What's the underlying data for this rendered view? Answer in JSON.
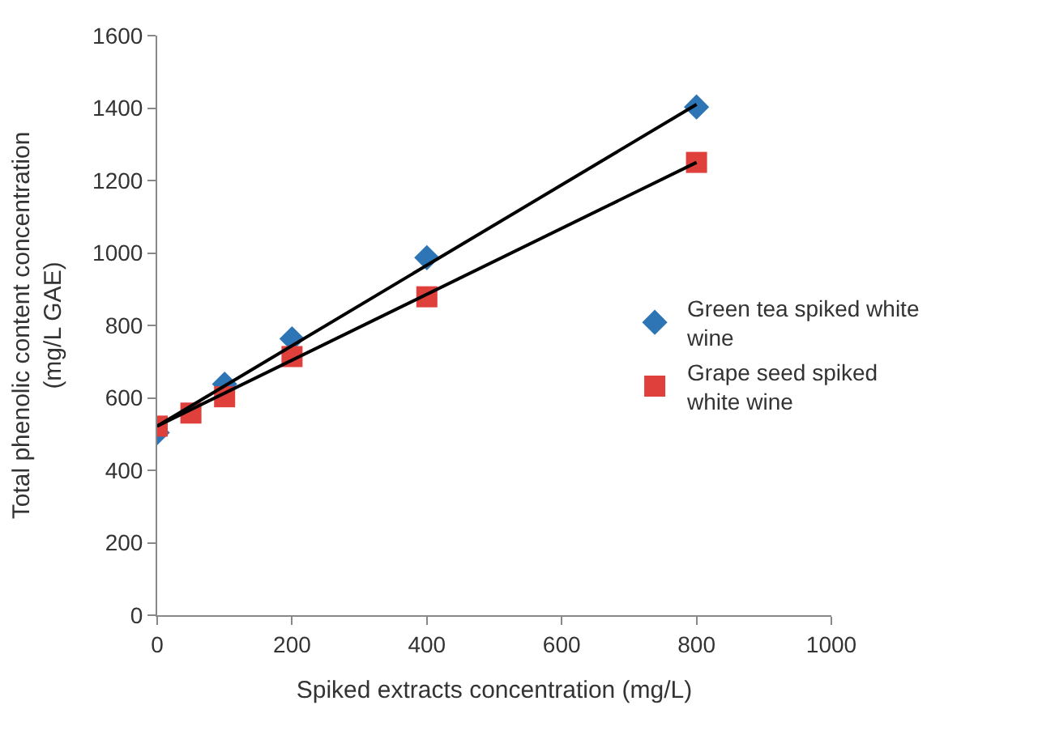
{
  "chart_data": {
    "type": "scatter",
    "xlabel": "Spiked extracts concentration (mg/L)",
    "ylabel": "Total phenolic content concentration\n(mg/L GAE)",
    "xlim": [
      0,
      1000
    ],
    "xticks": [
      0,
      200,
      400,
      600,
      800,
      1000
    ],
    "ylim": [
      0,
      1600
    ],
    "yticks": [
      0,
      200,
      400,
      600,
      800,
      1000,
      1200,
      1400,
      1600
    ],
    "legend": "right",
    "series": [
      {
        "name": "Green tea spiked white wine",
        "color": "#2e75b6",
        "marker": "diamond",
        "x": [
          0,
          100,
          200,
          400,
          800
        ],
        "values": [
          504,
          638,
          763,
          987,
          1403
        ]
      },
      {
        "name": "Grape seed spiked white wine",
        "color": "#e0403c",
        "marker": "square",
        "x": [
          0,
          50,
          100,
          200,
          400,
          800
        ],
        "values": [
          522,
          558,
          603,
          714,
          879,
          1250
        ]
      },
      {
        "type": "line",
        "color": "#000000",
        "marker": "none",
        "x": [
          0,
          800
        ],
        "values": [
          522,
          1410
        ]
      },
      {
        "type": "line",
        "color": "#000000",
        "marker": "none",
        "x": [
          0,
          800
        ],
        "values": [
          522,
          1250
        ]
      }
    ]
  }
}
